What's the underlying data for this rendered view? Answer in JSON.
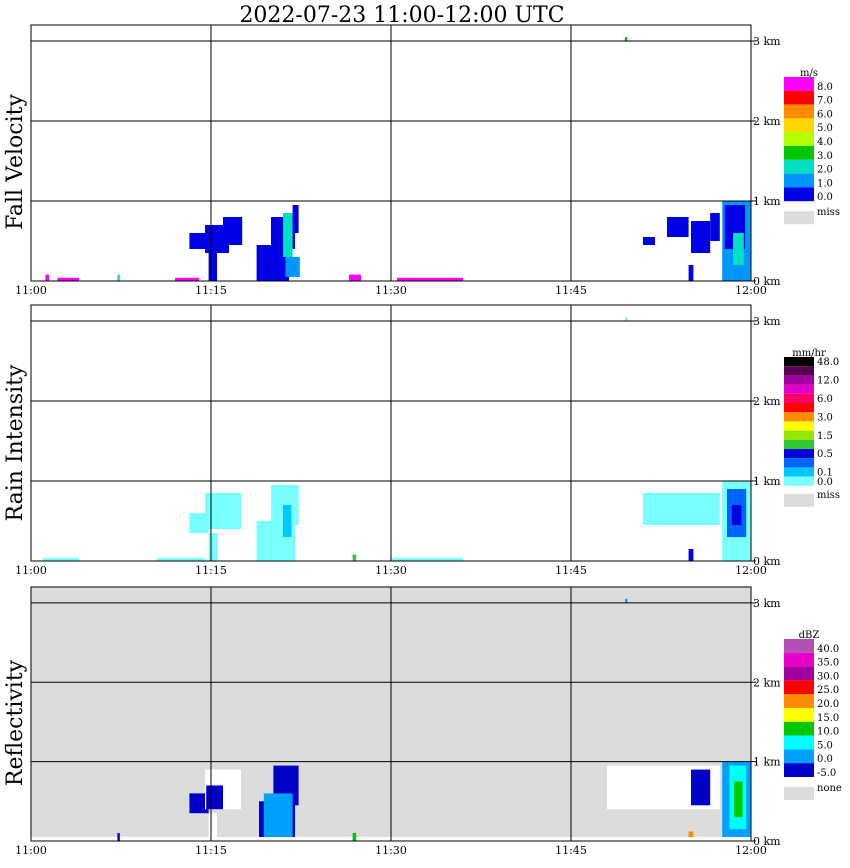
{
  "title": "2022-07-23   11:00-12:00 UTC",
  "colors": {
    "missing": "#dcdcdc",
    "grid": "#000000"
  },
  "chart_data": [
    {
      "type": "heatmap",
      "panel": "fall-velocity",
      "ylabel": "Fall Velocity",
      "x_ticks": [
        "11:00",
        "11:15",
        "11:30",
        "11:45",
        "12:00"
      ],
      "y_ticks": [
        "0 km",
        "1 km",
        "2 km",
        "3 km"
      ],
      "xlim_minutes": [
        0,
        60
      ],
      "ylim_km": [
        0,
        3.2
      ],
      "background": "#ffffff",
      "legend": {
        "unit": "m/s",
        "labels": [
          "8.0",
          "7.0",
          "6.0",
          "5.0",
          "4.0",
          "3.0",
          "2.0",
          "1.0",
          "0.0"
        ],
        "colors": [
          "#ff00ff",
          "#ff0000",
          "#ff8c00",
          "#ffd700",
          "#b4ff00",
          "#00c800",
          "#00e0c0",
          "#0096ff",
          "#0000e6"
        ],
        "missing_label": "miss"
      },
      "precip_cells": [
        {
          "t0": 13.2,
          "t1": 14.8,
          "h0": 0.4,
          "h1": 0.6,
          "color": "#0000e6"
        },
        {
          "t0": 14.5,
          "t1": 16.5,
          "h0": 0.35,
          "h1": 0.7,
          "color": "#0000e6"
        },
        {
          "t0": 16.0,
          "t1": 17.6,
          "h0": 0.45,
          "h1": 0.8,
          "color": "#0000e6"
        },
        {
          "t0": 14.8,
          "t1": 15.5,
          "h0": 0.0,
          "h1": 0.35,
          "color": "#0000e6"
        },
        {
          "t0": 18.8,
          "t1": 21.5,
          "h0": 0.0,
          "h1": 0.45,
          "color": "#0000e6"
        },
        {
          "t0": 20.0,
          "t1": 22.0,
          "h0": 0.4,
          "h1": 0.8,
          "color": "#0000e6"
        },
        {
          "t0": 21.0,
          "t1": 21.8,
          "h0": 0.3,
          "h1": 0.85,
          "color": "#00e0c0"
        },
        {
          "t0": 21.8,
          "t1": 22.3,
          "h0": 0.6,
          "h1": 0.95,
          "color": "#0000e6"
        },
        {
          "t0": 21.2,
          "t1": 22.4,
          "h0": 0.05,
          "h1": 0.3,
          "color": "#0096ff"
        },
        {
          "t0": 51.0,
          "t1": 52.0,
          "h0": 0.45,
          "h1": 0.55,
          "color": "#0000e6"
        },
        {
          "t0": 53.0,
          "t1": 54.8,
          "h0": 0.55,
          "h1": 0.8,
          "color": "#0000e6"
        },
        {
          "t0": 55.0,
          "t1": 56.6,
          "h0": 0.35,
          "h1": 0.75,
          "color": "#0000e6"
        },
        {
          "t0": 56.6,
          "t1": 57.4,
          "h0": 0.5,
          "h1": 0.85,
          "color": "#0000e6"
        },
        {
          "t0": 54.8,
          "t1": 55.2,
          "h0": 0.0,
          "h1": 0.2,
          "color": "#0000e6"
        },
        {
          "t0": 57.6,
          "t1": 60.0,
          "h0": 0.0,
          "h1": 1.0,
          "color": "#0096ff"
        },
        {
          "t0": 57.8,
          "t1": 59.5,
          "h0": 0.4,
          "h1": 0.95,
          "color": "#0000e6"
        },
        {
          "t0": 58.5,
          "t1": 59.4,
          "h0": 0.2,
          "h1": 0.6,
          "color": "#00e0c0"
        },
        {
          "t0": 49.5,
          "t1": 49.7,
          "h0": 3.0,
          "h1": 3.05,
          "color": "#00c800"
        },
        {
          "t0": 1.2,
          "t1": 1.5,
          "h0": 0.0,
          "h1": 0.08,
          "color": "#ff00ff"
        },
        {
          "t0": 2.2,
          "t1": 4.0,
          "h0": 0.0,
          "h1": 0.04,
          "color": "#ff00ff"
        },
        {
          "t0": 7.2,
          "t1": 7.4,
          "h0": 0.0,
          "h1": 0.08,
          "color": "#00e0c0"
        },
        {
          "t0": 12.0,
          "t1": 14.0,
          "h0": 0.0,
          "h1": 0.04,
          "color": "#ff00ff"
        },
        {
          "t0": 26.5,
          "t1": 27.5,
          "h0": 0.0,
          "h1": 0.08,
          "color": "#ff00ff"
        },
        {
          "t0": 30.5,
          "t1": 36.0,
          "h0": 0.0,
          "h1": 0.04,
          "color": "#ff00ff"
        }
      ]
    },
    {
      "type": "heatmap",
      "panel": "rain-intensity",
      "ylabel": "Rain Intensity",
      "x_ticks": [
        "11:00",
        "11:15",
        "11:30",
        "11:45",
        "12:00"
      ],
      "y_ticks": [
        "0 km",
        "1 km",
        "2 km",
        "3 km"
      ],
      "xlim_minutes": [
        0,
        60
      ],
      "ylim_km": [
        0,
        3.2
      ],
      "background": "#ffffff",
      "legend": {
        "unit": "mm/hr",
        "labels": [
          "48.0",
          "",
          "12.0",
          "",
          "6.0",
          "",
          "3.0",
          "",
          "1.5",
          "",
          "0.5",
          "",
          "0.1",
          "0.0"
        ],
        "colors": [
          "#000000",
          "#5a0050",
          "#a000a0",
          "#e000c8",
          "#ff0064",
          "#ff0000",
          "#ff8c00",
          "#ffff00",
          "#96e600",
          "#32c832",
          "#0000dc",
          "#0064ff",
          "#00c8ff",
          "#78ffff"
        ],
        "missing_label": "miss"
      },
      "precip_cells": [
        {
          "t0": 13.2,
          "t1": 14.8,
          "h0": 0.35,
          "h1": 0.6,
          "color": "#78ffff"
        },
        {
          "t0": 14.5,
          "t1": 17.5,
          "h0": 0.4,
          "h1": 0.85,
          "color": "#78ffff"
        },
        {
          "t0": 14.8,
          "t1": 15.5,
          "h0": 0.0,
          "h1": 0.35,
          "color": "#78ffff"
        },
        {
          "t0": 18.8,
          "t1": 22.0,
          "h0": 0.0,
          "h1": 0.5,
          "color": "#78ffff"
        },
        {
          "t0": 20.0,
          "t1": 22.3,
          "h0": 0.45,
          "h1": 0.95,
          "color": "#78ffff"
        },
        {
          "t0": 21.0,
          "t1": 21.7,
          "h0": 0.3,
          "h1": 0.7,
          "color": "#00c8ff"
        },
        {
          "t0": 51.0,
          "t1": 57.4,
          "h0": 0.45,
          "h1": 0.85,
          "color": "#78ffff"
        },
        {
          "t0": 57.6,
          "t1": 60.0,
          "h0": 0.0,
          "h1": 1.0,
          "color": "#78ffff"
        },
        {
          "t0": 58.0,
          "t1": 59.6,
          "h0": 0.3,
          "h1": 0.9,
          "color": "#0064ff"
        },
        {
          "t0": 58.4,
          "t1": 59.2,
          "h0": 0.45,
          "h1": 0.7,
          "color": "#0000dc"
        },
        {
          "t0": 54.8,
          "t1": 55.2,
          "h0": 0.0,
          "h1": 0.15,
          "color": "#0000dc"
        },
        {
          "t0": 1.0,
          "t1": 4.0,
          "h0": 0.0,
          "h1": 0.04,
          "color": "#78ffff"
        },
        {
          "t0": 10.5,
          "t1": 14.5,
          "h0": 0.0,
          "h1": 0.04,
          "color": "#78ffff"
        },
        {
          "t0": 26.8,
          "t1": 27.1,
          "h0": 0.0,
          "h1": 0.08,
          "color": "#32c832"
        },
        {
          "t0": 30.0,
          "t1": 36.0,
          "h0": 0.0,
          "h1": 0.04,
          "color": "#78ffff"
        },
        {
          "t0": 49.5,
          "t1": 49.7,
          "h0": 3.0,
          "h1": 3.05,
          "color": "#78ffff"
        }
      ]
    },
    {
      "type": "heatmap",
      "panel": "reflectivity",
      "ylabel": "Reflectivity",
      "x_ticks": [
        "11:00",
        "11:15",
        "11:30",
        "11:45",
        "12:00"
      ],
      "y_ticks": [
        "0 km",
        "1 km",
        "2 km",
        "3 km"
      ],
      "xlim_minutes": [
        0,
        60
      ],
      "ylim_km": [
        0,
        3.2
      ],
      "background": "#dcdcdc",
      "legend": {
        "unit": "dBZ",
        "labels": [
          "40.0",
          "35.0",
          "30.0",
          "25.0",
          "20.0",
          "15.0",
          "10.0",
          "5.0",
          "0.0",
          "-5.0"
        ],
        "colors": [
          "#b450b4",
          "#e600c8",
          "#a000a0",
          "#ff0000",
          "#ff8c00",
          "#ffff00",
          "#00c800",
          "#00ffff",
          "#00a0ff",
          "#0000c8"
        ],
        "missing_label": "none"
      },
      "precip_cells": [
        {
          "t0": 13.2,
          "t1": 14.8,
          "h0": 0.35,
          "h1": 0.6,
          "color": "#0000c8"
        },
        {
          "t0": 14.5,
          "t1": 17.5,
          "h0": 0.4,
          "h1": 0.9,
          "color": "#ffffff"
        },
        {
          "t0": 14.6,
          "t1": 16.0,
          "h0": 0.4,
          "h1": 0.7,
          "color": "#0000c8"
        },
        {
          "t0": 14.8,
          "t1": 15.5,
          "h0": 0.0,
          "h1": 0.35,
          "color": "#ffffff"
        },
        {
          "t0": 19.0,
          "t1": 22.0,
          "h0": 0.0,
          "h1": 0.5,
          "color": "#0000c8"
        },
        {
          "t0": 20.2,
          "t1": 22.3,
          "h0": 0.45,
          "h1": 0.95,
          "color": "#0000c8"
        },
        {
          "t0": 19.4,
          "t1": 21.8,
          "h0": 0.05,
          "h1": 0.6,
          "color": "#00a0ff"
        },
        {
          "t0": 48.0,
          "t1": 57.4,
          "h0": 0.4,
          "h1": 0.95,
          "color": "#ffffff"
        },
        {
          "t0": 55.0,
          "t1": 56.6,
          "h0": 0.45,
          "h1": 0.9,
          "color": "#0000c8"
        },
        {
          "t0": 57.6,
          "t1": 60.0,
          "h0": 0.0,
          "h1": 1.0,
          "color": "#00a0ff"
        },
        {
          "t0": 58.2,
          "t1": 59.6,
          "h0": 0.15,
          "h1": 0.95,
          "color": "#00ffff"
        },
        {
          "t0": 58.6,
          "t1": 59.3,
          "h0": 0.3,
          "h1": 0.75,
          "color": "#00c800"
        },
        {
          "t0": 54.8,
          "t1": 55.2,
          "h0": 0.0,
          "h1": 0.12,
          "color": "#ff8c00"
        },
        {
          "t0": 0.0,
          "t1": 60.0,
          "h0": 0.0,
          "h1": 0.05,
          "color": "#ffffff"
        },
        {
          "t0": 26.8,
          "t1": 27.1,
          "h0": 0.0,
          "h1": 0.1,
          "color": "#00c800"
        },
        {
          "t0": 7.2,
          "t1": 7.4,
          "h0": 0.0,
          "h1": 0.1,
          "color": "#0000c8"
        },
        {
          "t0": 49.5,
          "t1": 49.7,
          "h0": 3.0,
          "h1": 3.05,
          "color": "#00a0ff"
        }
      ]
    }
  ]
}
